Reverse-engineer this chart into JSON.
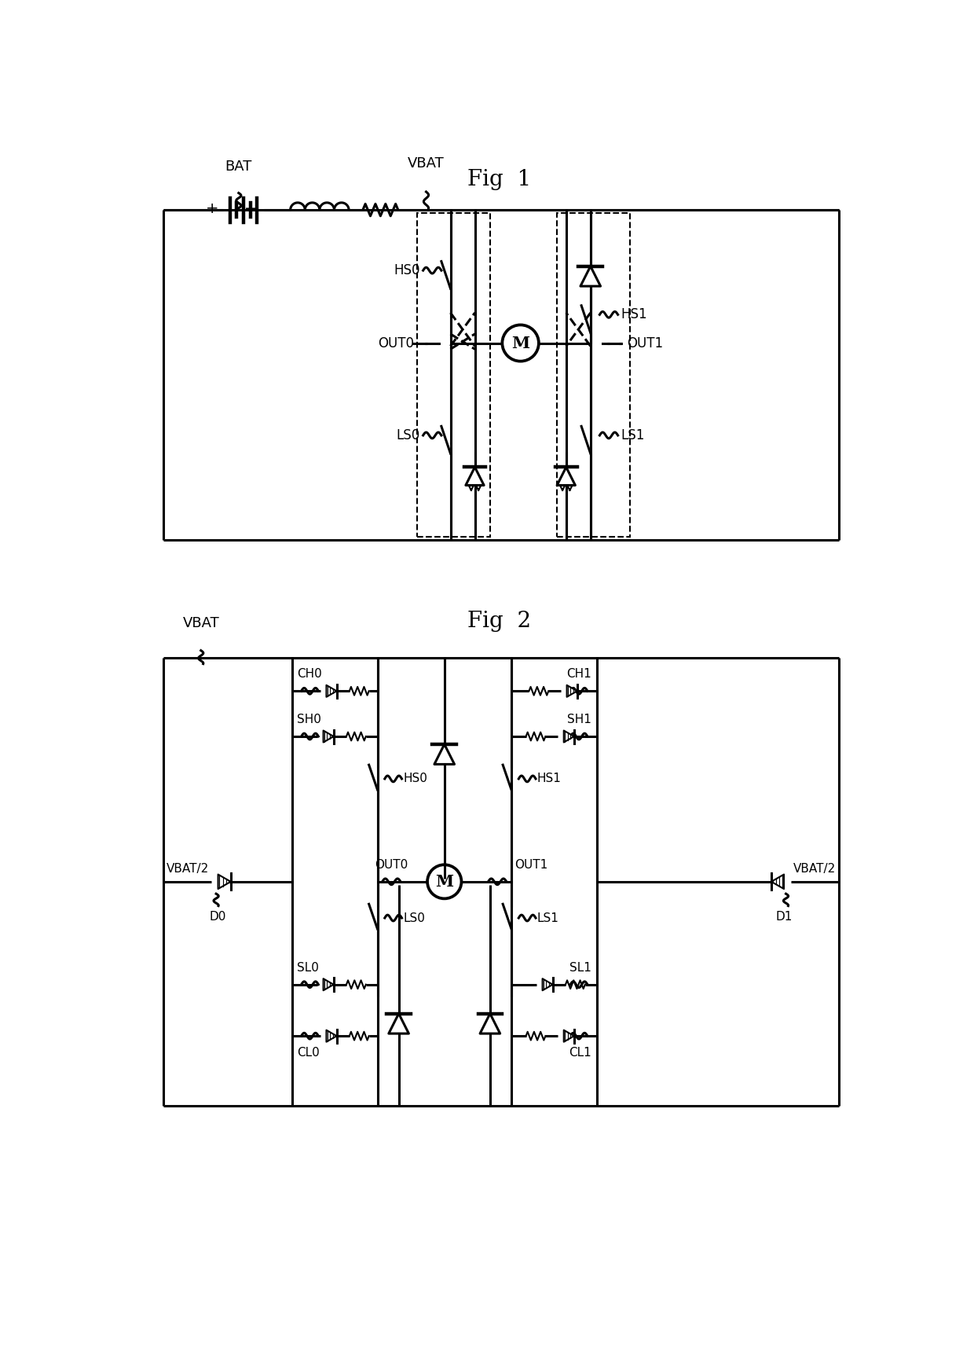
{
  "title1": "Fig  1",
  "title2": "Fig  2",
  "bg_color": "#ffffff",
  "line_color": "#000000",
  "fig1": {
    "bat_label": "BAT",
    "vbat_label": "VBAT",
    "hs0_label": "HS0",
    "hs1_label": "HS1",
    "out0_label": "OUT0",
    "out1_label": "OUT1",
    "ls0_label": "LS0",
    "ls1_label": "LS1"
  },
  "fig2": {
    "vbat_label": "VBAT",
    "ch0_label": "CH0",
    "ch1_label": "CH1",
    "sh0_label": "SH0",
    "sh1_label": "SH1",
    "hs0_label": "HS0",
    "hs1_label": "HS1",
    "d0_label": "D0",
    "d1_label": "D1",
    "vbat2_left": "VBAT/2",
    "vbat2_right": "VBAT/2",
    "out0_label": "OUT0",
    "out1_label": "OUT1",
    "ls0_label": "LS0",
    "ls1_label": "LS1",
    "sl0_label": "SL0",
    "sl1_label": "SL1",
    "cl0_label": "CL0",
    "cl1_label": "CL1"
  }
}
